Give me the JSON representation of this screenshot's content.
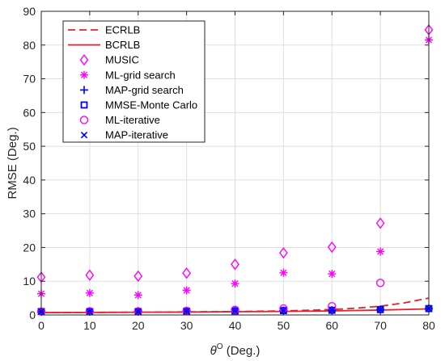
{
  "chart_data": {
    "type": "scatter",
    "xlabel": "θ",
    "xlabel_sup": "O",
    "xlabel_suffix": " (Deg.)",
    "ylabel": "RMSE (Deg.)",
    "xlim": [
      0,
      80
    ],
    "ylim": [
      0,
      90
    ],
    "xticks": [
      0,
      10,
      20,
      30,
      40,
      50,
      60,
      70,
      80
    ],
    "yticks": [
      0,
      10,
      20,
      30,
      40,
      50,
      60,
      70,
      80,
      90
    ],
    "grid": true,
    "legend_position": "top-left",
    "series": [
      {
        "name": "ECRLB",
        "style": "dashed-line",
        "color": "#e8202a",
        "x": [
          0,
          10,
          20,
          30,
          40,
          50,
          60,
          65,
          70,
          75,
          80
        ],
        "y": [
          0.7,
          0.75,
          0.8,
          0.9,
          1.0,
          1.2,
          1.6,
          2.0,
          2.6,
          3.6,
          5.0
        ]
      },
      {
        "name": "BCRLB",
        "style": "solid-line",
        "color": "#e8202a",
        "x": [
          0,
          10,
          20,
          30,
          40,
          50,
          60,
          70,
          80
        ],
        "y": [
          0.7,
          0.75,
          0.8,
          0.85,
          0.95,
          1.05,
          1.2,
          1.45,
          1.8
        ]
      },
      {
        "name": "MUSIC",
        "style": "diamond",
        "color": "#ff00ff",
        "x": [
          0,
          10,
          20,
          30,
          40,
          50,
          60,
          70,
          80
        ],
        "y": [
          11.2,
          11.8,
          11.5,
          12.4,
          15.0,
          18.4,
          20.1,
          27.2,
          84.5
        ]
      },
      {
        "name": "ML-grid search",
        "style": "asterisk",
        "color": "#ff00ff",
        "x": [
          0,
          10,
          20,
          30,
          40,
          50,
          60,
          70,
          80
        ],
        "y": [
          6.3,
          6.5,
          5.9,
          7.3,
          9.3,
          12.5,
          12.2,
          18.8,
          81.5
        ]
      },
      {
        "name": "MAP-grid search",
        "style": "plus",
        "color": "#0000ff",
        "x": [
          0,
          10,
          20,
          30,
          40,
          50,
          60,
          70,
          80
        ],
        "y": [
          1.0,
          1.0,
          1.0,
          1.1,
          1.2,
          1.3,
          1.4,
          1.6,
          1.9
        ]
      },
      {
        "name": "MMSE-Monte Carlo",
        "style": "square",
        "color": "#0000ff",
        "x": [
          0,
          10,
          20,
          30,
          40,
          50,
          60,
          70,
          80
        ],
        "y": [
          1.0,
          1.0,
          1.0,
          1.1,
          1.2,
          1.3,
          1.4,
          1.6,
          1.9
        ]
      },
      {
        "name": "ML-iterative",
        "style": "circle",
        "color": "#ff00ff",
        "x": [
          0,
          10,
          20,
          30,
          40,
          50,
          60,
          70
        ],
        "y": [
          1.0,
          1.1,
          1.1,
          1.2,
          1.5,
          1.9,
          2.6,
          9.5
        ]
      },
      {
        "name": "MAP-iterative",
        "style": "cross",
        "color": "#0000ff",
        "x": [
          0,
          10,
          20,
          30,
          40,
          50,
          60,
          70,
          80
        ],
        "y": [
          1.0,
          1.0,
          1.0,
          1.1,
          1.2,
          1.3,
          1.4,
          1.6,
          1.9
        ]
      }
    ]
  }
}
